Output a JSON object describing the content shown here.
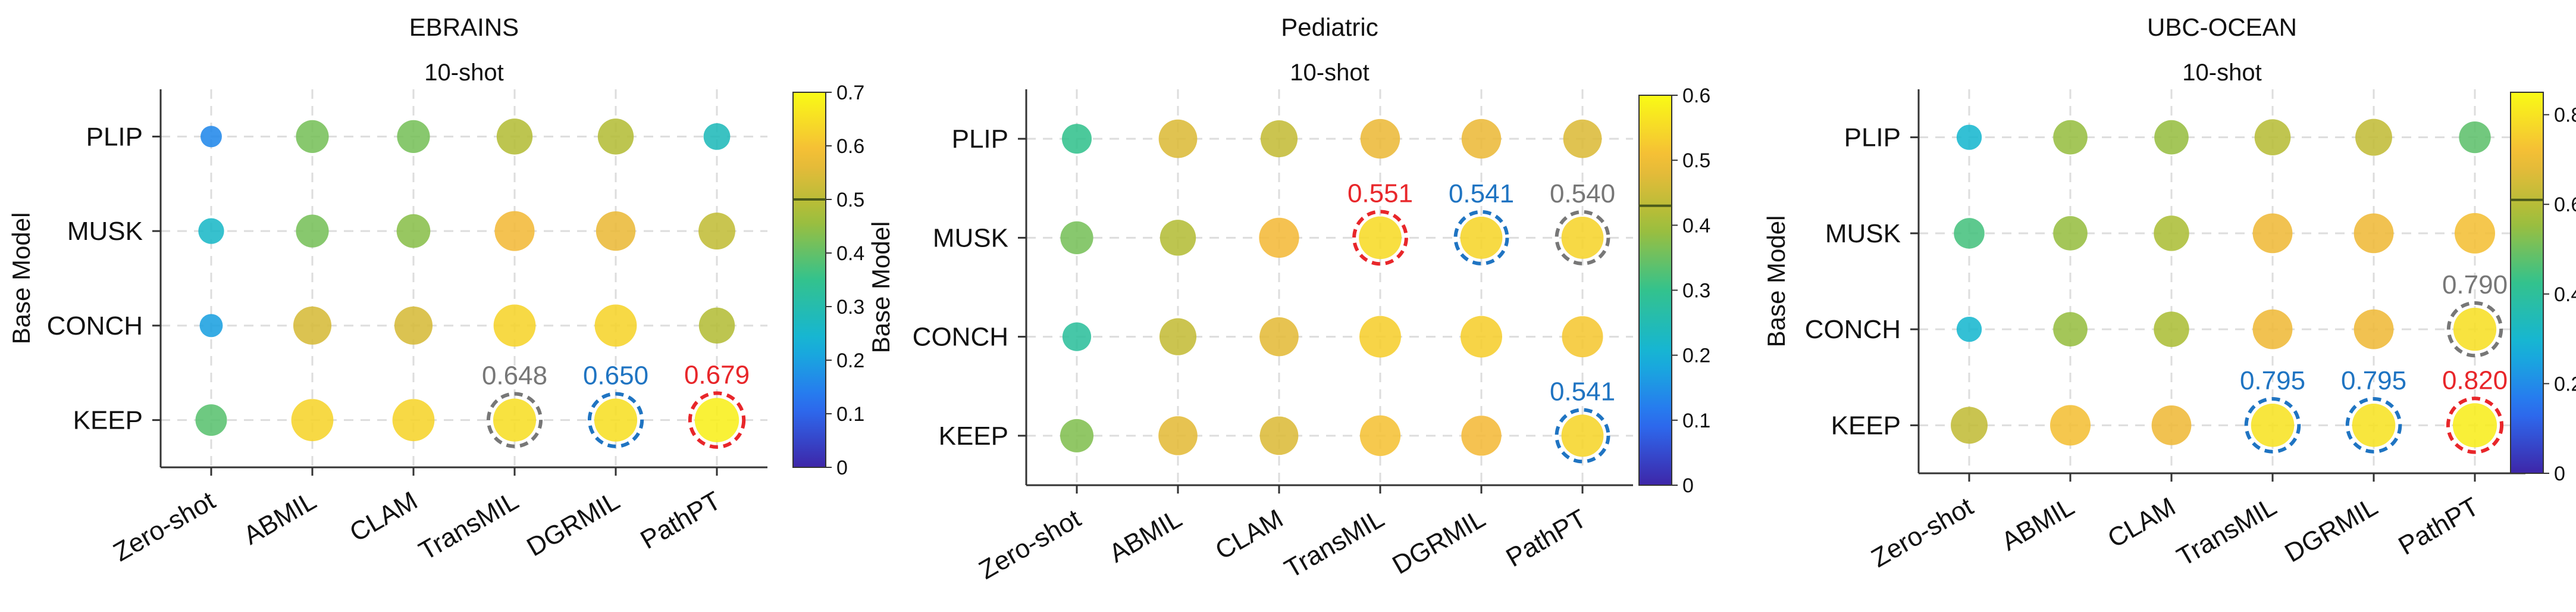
{
  "colormap": [
    "#3e26a8",
    "#2b6ff4",
    "#14b5d8",
    "#33c28d",
    "#a4be38",
    "#f4ba39",
    "#f9fb15"
  ],
  "chart_data": [
    {
      "type": "scatter",
      "title": "EBRAINS",
      "subtitle": "10-shot",
      "xlabel": "",
      "ylabel": "",
      "x_categories": [
        "Zero-shot",
        "ABMIL",
        "CLAM",
        "TransMIL",
        "DGRMIL",
        "PathPT"
      ],
      "y_categories": [
        "PLIP",
        "MUSK",
        "CONCH",
        "KEEP"
      ],
      "colorbar": {
        "min": 0,
        "max": 0.7,
        "ticks": [
          "0",
          "0.1",
          "0.2",
          "0.3",
          "0.4",
          "0.5",
          "0.6",
          "0.7"
        ],
        "marker": 0.5
      },
      "points": [
        {
          "x": "Zero-shot",
          "y": "PLIP",
          "value": 0.16
        },
        {
          "x": "ABMIL",
          "y": "PLIP",
          "value": 0.42
        },
        {
          "x": "CLAM",
          "y": "PLIP",
          "value": 0.42
        },
        {
          "x": "TransMIL",
          "y": "PLIP",
          "value": 0.49
        },
        {
          "x": "DGRMIL",
          "y": "PLIP",
          "value": 0.49
        },
        {
          "x": "PathPT",
          "y": "PLIP",
          "value": 0.28
        },
        {
          "x": "Zero-shot",
          "y": "MUSK",
          "value": 0.26
        },
        {
          "x": "ABMIL",
          "y": "MUSK",
          "value": 0.42
        },
        {
          "x": "CLAM",
          "y": "MUSK",
          "value": 0.44
        },
        {
          "x": "TransMIL",
          "y": "MUSK",
          "value": 0.58
        },
        {
          "x": "DGRMIL",
          "y": "MUSK",
          "value": 0.57
        },
        {
          "x": "PathPT",
          "y": "MUSK",
          "value": 0.51
        },
        {
          "x": "Zero-shot",
          "y": "CONCH",
          "value": 0.2
        },
        {
          "x": "ABMIL",
          "y": "CONCH",
          "value": 0.54
        },
        {
          "x": "CLAM",
          "y": "CONCH",
          "value": 0.54
        },
        {
          "x": "TransMIL",
          "y": "CONCH",
          "value": 0.63
        },
        {
          "x": "DGRMIL",
          "y": "CONCH",
          "value": 0.63
        },
        {
          "x": "PathPT",
          "y": "CONCH",
          "value": 0.49
        },
        {
          "x": "Zero-shot",
          "y": "KEEP",
          "value": 0.39
        },
        {
          "x": "ABMIL",
          "y": "KEEP",
          "value": 0.63
        },
        {
          "x": "CLAM",
          "y": "KEEP",
          "value": 0.63
        },
        {
          "x": "TransMIL",
          "y": "KEEP",
          "value": 0.648,
          "label": "0.648",
          "highlight": "gray"
        },
        {
          "x": "DGRMIL",
          "y": "KEEP",
          "value": 0.65,
          "label": "0.650",
          "highlight": "blue"
        },
        {
          "x": "PathPT",
          "y": "KEEP",
          "value": 0.679,
          "label": "0.679",
          "highlight": "red"
        }
      ]
    },
    {
      "type": "scatter",
      "title": "Pediatric",
      "subtitle": "10-shot",
      "xlabel": "",
      "ylabel": "",
      "x_categories": [
        "Zero-shot",
        "ABMIL",
        "CLAM",
        "TransMIL",
        "DGRMIL",
        "PathPT"
      ],
      "y_categories": [
        "PLIP",
        "MUSK",
        "CONCH",
        "KEEP"
      ],
      "colorbar": {
        "min": 0,
        "max": 0.6,
        "ticks": [
          "0",
          "0.1",
          "0.2",
          "0.3",
          "0.4",
          "0.5",
          "0.6"
        ],
        "marker": 0.43
      },
      "points": [
        {
          "x": "Zero-shot",
          "y": "PLIP",
          "value": 0.3
        },
        {
          "x": "ABMIL",
          "y": "PLIP",
          "value": 0.47
        },
        {
          "x": "CLAM",
          "y": "PLIP",
          "value": 0.44
        },
        {
          "x": "TransMIL",
          "y": "PLIP",
          "value": 0.49
        },
        {
          "x": "DGRMIL",
          "y": "PLIP",
          "value": 0.49
        },
        {
          "x": "PathPT",
          "y": "PLIP",
          "value": 0.47
        },
        {
          "x": "Zero-shot",
          "y": "MUSK",
          "value": 0.36
        },
        {
          "x": "ABMIL",
          "y": "MUSK",
          "value": 0.42
        },
        {
          "x": "CLAM",
          "y": "MUSK",
          "value": 0.5
        },
        {
          "x": "TransMIL",
          "y": "MUSK",
          "value": 0.551,
          "label": "0.551",
          "highlight": "red"
        },
        {
          "x": "DGRMIL",
          "y": "MUSK",
          "value": 0.541,
          "label": "0.541",
          "highlight": "blue"
        },
        {
          "x": "PathPT",
          "y": "MUSK",
          "value": 0.54,
          "label": "0.540",
          "highlight": "gray"
        },
        {
          "x": "Zero-shot",
          "y": "CONCH",
          "value": 0.28
        },
        {
          "x": "ABMIL",
          "y": "CONCH",
          "value": 0.44
        },
        {
          "x": "CLAM",
          "y": "CONCH",
          "value": 0.48
        },
        {
          "x": "TransMIL",
          "y": "CONCH",
          "value": 0.53
        },
        {
          "x": "DGRMIL",
          "y": "CONCH",
          "value": 0.53
        },
        {
          "x": "PathPT",
          "y": "CONCH",
          "value": 0.52
        },
        {
          "x": "Zero-shot",
          "y": "KEEP",
          "value": 0.37
        },
        {
          "x": "ABMIL",
          "y": "KEEP",
          "value": 0.48
        },
        {
          "x": "CLAM",
          "y": "KEEP",
          "value": 0.47
        },
        {
          "x": "TransMIL",
          "y": "KEEP",
          "value": 0.51
        },
        {
          "x": "DGRMIL",
          "y": "KEEP",
          "value": 0.5
        },
        {
          "x": "PathPT",
          "y": "KEEP",
          "value": 0.541,
          "label": "0.541",
          "highlight": "blue"
        }
      ]
    },
    {
      "type": "scatter",
      "title": "UBC-OCEAN",
      "subtitle": "10-shot",
      "xlabel": "",
      "ylabel": "",
      "x_categories": [
        "Zero-shot",
        "ABMIL",
        "CLAM",
        "TransMIL",
        "DGRMIL",
        "PathPT"
      ],
      "y_categories": [
        "PLIP",
        "MUSK",
        "CONCH",
        "KEEP"
      ],
      "colorbar": {
        "min": 0,
        "max": 0.85,
        "ticks": [
          "0",
          "0.2",
          "0.4",
          "0.6",
          "0.8"
        ],
        "marker": 0.61
      },
      "points": [
        {
          "x": "Zero-shot",
          "y": "PLIP",
          "value": 0.3
        },
        {
          "x": "ABMIL",
          "y": "PLIP",
          "value": 0.55
        },
        {
          "x": "CLAM",
          "y": "PLIP",
          "value": 0.55
        },
        {
          "x": "TransMIL",
          "y": "PLIP",
          "value": 0.6
        },
        {
          "x": "DGRMIL",
          "y": "PLIP",
          "value": 0.62
        },
        {
          "x": "PathPT",
          "y": "PLIP",
          "value": 0.48
        },
        {
          "x": "Zero-shot",
          "y": "MUSK",
          "value": 0.45
        },
        {
          "x": "ABMIL",
          "y": "MUSK",
          "value": 0.55
        },
        {
          "x": "CLAM",
          "y": "MUSK",
          "value": 0.58
        },
        {
          "x": "TransMIL",
          "y": "MUSK",
          "value": 0.7
        },
        {
          "x": "DGRMIL",
          "y": "MUSK",
          "value": 0.7
        },
        {
          "x": "PathPT",
          "y": "MUSK",
          "value": 0.72
        },
        {
          "x": "Zero-shot",
          "y": "CONCH",
          "value": 0.3
        },
        {
          "x": "ABMIL",
          "y": "CONCH",
          "value": 0.55
        },
        {
          "x": "CLAM",
          "y": "CONCH",
          "value": 0.58
        },
        {
          "x": "TransMIL",
          "y": "CONCH",
          "value": 0.7
        },
        {
          "x": "DGRMIL",
          "y": "CONCH",
          "value": 0.7
        },
        {
          "x": "PathPT",
          "y": "CONCH",
          "value": 0.79,
          "label": "0.790",
          "highlight": "gray"
        },
        {
          "x": "Zero-shot",
          "y": "KEEP",
          "value": 0.62
        },
        {
          "x": "ABMIL",
          "y": "KEEP",
          "value": 0.72
        },
        {
          "x": "CLAM",
          "y": "KEEP",
          "value": 0.7
        },
        {
          "x": "TransMIL",
          "y": "KEEP",
          "value": 0.795,
          "label": "0.795",
          "highlight": "blue"
        },
        {
          "x": "DGRMIL",
          "y": "KEEP",
          "value": 0.795,
          "label": "0.795",
          "highlight": "blue"
        },
        {
          "x": "PathPT",
          "y": "KEEP",
          "value": 0.82,
          "label": "0.820",
          "highlight": "red"
        }
      ]
    }
  ],
  "ylabel_text": "Base Model",
  "highlight_colors": {
    "red": "#e8262a",
    "blue": "#1f74c2",
    "gray": "#777777"
  }
}
